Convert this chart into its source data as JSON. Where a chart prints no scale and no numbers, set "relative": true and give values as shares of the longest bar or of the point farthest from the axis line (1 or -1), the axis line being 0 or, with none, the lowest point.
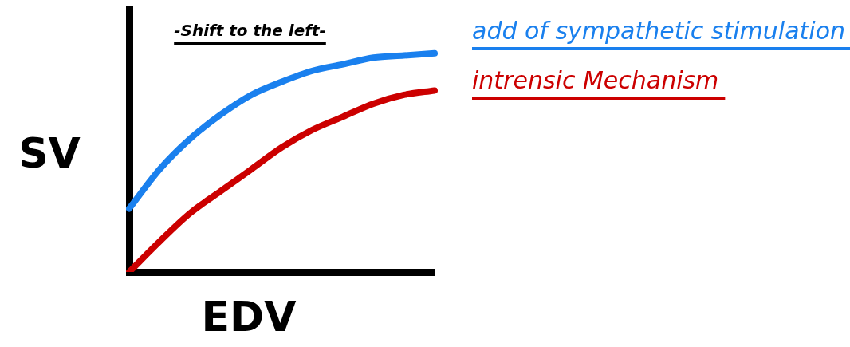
{
  "chart_data": {
    "type": "line",
    "relative": true,
    "title": "-Shift to the left-",
    "xlabel": "EDV",
    "ylabel": "SV",
    "marker": "none",
    "categories": [
      null,
      null,
      null,
      null,
      null,
      null,
      null,
      null,
      null,
      null,
      null
    ],
    "series": [
      {
        "name": "add of sympathetic stimulation",
        "color": "#1a80ee",
        "values": [
          0.29,
          0.47,
          0.61,
          0.72,
          0.81,
          0.87,
          0.92,
          0.95,
          0.98,
          0.99,
          1.0
        ]
      },
      {
        "name": "intrensic Mechanism",
        "color": "#cc0000",
        "values": [
          0,
          0.14,
          0.27,
          0.37,
          0.47,
          0.57,
          0.65,
          0.71,
          0.77,
          0.81,
          0.83
        ]
      }
    ]
  }
}
